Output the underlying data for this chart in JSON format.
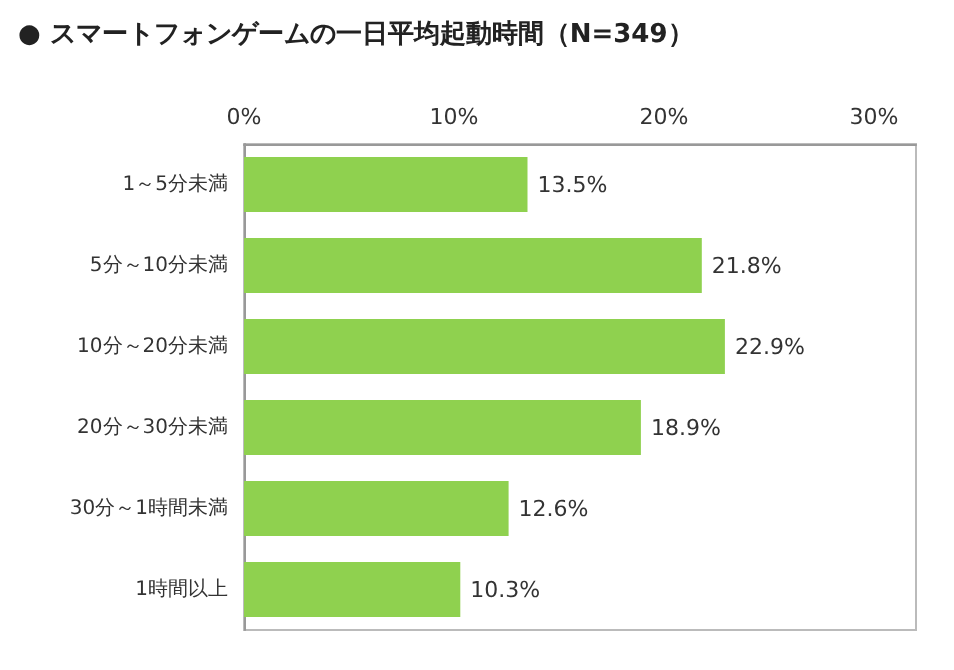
{
  "chart_data": {
    "type": "bar",
    "orientation": "horizontal",
    "title": "● スマートフォンゲームの一日平均起動時間（N=349）",
    "categories": [
      "1～5分未満",
      "5分～10分未満",
      "10分～20分未満",
      "20分～30分未満",
      "30分～1時間未満",
      "1時間以上"
    ],
    "values": [
      13.5,
      21.8,
      22.9,
      18.9,
      12.6,
      10.3
    ],
    "value_labels": [
      "13.5%",
      "21.8%",
      "22.9%",
      "18.9%",
      "12.6%",
      "10.3%"
    ],
    "color": "#8fd14f",
    "xlim": [
      0,
      32
    ],
    "xticks": [
      {
        "value": 0,
        "label": "0%"
      },
      {
        "value": 10,
        "label": "10%"
      },
      {
        "value": 20,
        "label": "20%"
      },
      {
        "value": 30,
        "label": "30%"
      }
    ],
    "grid": false
  }
}
